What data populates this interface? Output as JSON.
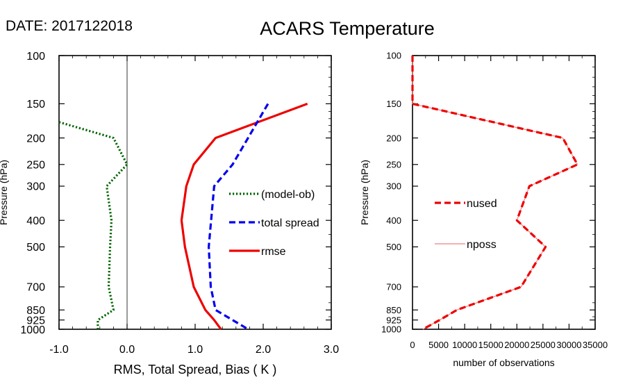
{
  "header": {
    "date_label": "DATE: 2017122018",
    "title": "ACARS Temperature"
  },
  "chart_data": [
    {
      "type": "line",
      "title": "ACARS Temperature",
      "xlabel": "RMS, Total Spread, Bias ( K )",
      "ylabel": "Pressure (hPa)",
      "xlim": [
        -1.0,
        3.0
      ],
      "ylim": [
        1000,
        100
      ],
      "y_scale": "log",
      "x_tick_values": [
        -1.0,
        0.0,
        1.0,
        2.0,
        3.0
      ],
      "x_tick_labels": [
        "-1.0",
        "0.0",
        "1.0",
        "2.0",
        "3.0"
      ],
      "y_tick_values": [
        100,
        150,
        200,
        250,
        300,
        400,
        500,
        700,
        850,
        925,
        1000
      ],
      "y_tick_labels": [
        "100",
        "150",
        "200",
        "250",
        "300",
        "400",
        "500",
        "700",
        "850",
        "925",
        "1000"
      ],
      "zero_line": 0.0,
      "legend_position": "center-right",
      "series": [
        {
          "name": "(model-ob)",
          "color": "#006400",
          "style": "dotted",
          "points": [
            [
              -1.0,
              175
            ],
            [
              -0.2,
              200
            ],
            [
              0.0,
              250
            ],
            [
              -0.3,
              300
            ],
            [
              -0.23,
              400
            ],
            [
              -0.25,
              500
            ],
            [
              -0.27,
              700
            ],
            [
              -0.2,
              850
            ],
            [
              -0.43,
              925
            ],
            [
              -0.43,
              1000
            ]
          ]
        },
        {
          "name": "total spread",
          "color": "#0000ee",
          "style": "dashed",
          "points": [
            [
              2.07,
              150
            ],
            [
              1.55,
              250
            ],
            [
              1.28,
              300
            ],
            [
              1.2,
              500
            ],
            [
              1.23,
              700
            ],
            [
              1.3,
              850
            ],
            [
              1.78,
              1000
            ]
          ]
        },
        {
          "name": "rmse",
          "color": "#ee0000",
          "style": "solid",
          "points": [
            [
              2.65,
              150
            ],
            [
              1.3,
              200
            ],
            [
              0.98,
              250
            ],
            [
              0.87,
              300
            ],
            [
              0.8,
              400
            ],
            [
              0.85,
              500
            ],
            [
              0.98,
              700
            ],
            [
              1.15,
              850
            ],
            [
              1.28,
              925
            ],
            [
              1.38,
              1000
            ]
          ]
        }
      ]
    },
    {
      "type": "line",
      "title": "",
      "xlabel": "number of observations",
      "ylabel": "Pressure (hPa)",
      "xlim": [
        0,
        35000
      ],
      "ylim": [
        1000,
        100
      ],
      "y_scale": "log",
      "x_tick_values": [
        0,
        5000,
        10000,
        15000,
        20000,
        25000,
        30000,
        35000
      ],
      "x_tick_labels": [
        "0",
        "5000",
        "10000",
        "15000",
        "20000",
        "25000",
        "30000",
        "35000"
      ],
      "y_tick_values": [
        100,
        150,
        200,
        250,
        300,
        400,
        500,
        700,
        850,
        925,
        1000
      ],
      "y_tick_labels": [
        "100",
        "150",
        "200",
        "250",
        "300",
        "400",
        "500",
        "700",
        "850",
        "925",
        "1000"
      ],
      "legend_position": "center-left",
      "series": [
        {
          "name": "nused",
          "color": "#ee0000",
          "style": "dashed",
          "points": [
            [
              0,
              100
            ],
            [
              0,
              150
            ],
            [
              28800,
              200
            ],
            [
              31600,
              250
            ],
            [
              22400,
              300
            ],
            [
              20000,
              400
            ],
            [
              25500,
              500
            ],
            [
              20800,
              700
            ],
            [
              8500,
              850
            ],
            [
              5200,
              925
            ],
            [
              2000,
              1000
            ]
          ]
        },
        {
          "name": "nposs",
          "color": "#f08080",
          "style": "solid",
          "points": [
            [
              0,
              100
            ],
            [
              0,
              150
            ],
            [
              28800,
              200
            ],
            [
              31600,
              250
            ],
            [
              22400,
              300
            ],
            [
              20000,
              400
            ],
            [
              25500,
              500
            ],
            [
              20800,
              700
            ],
            [
              8500,
              850
            ],
            [
              5200,
              925
            ],
            [
              2000,
              1000
            ]
          ]
        }
      ]
    }
  ]
}
